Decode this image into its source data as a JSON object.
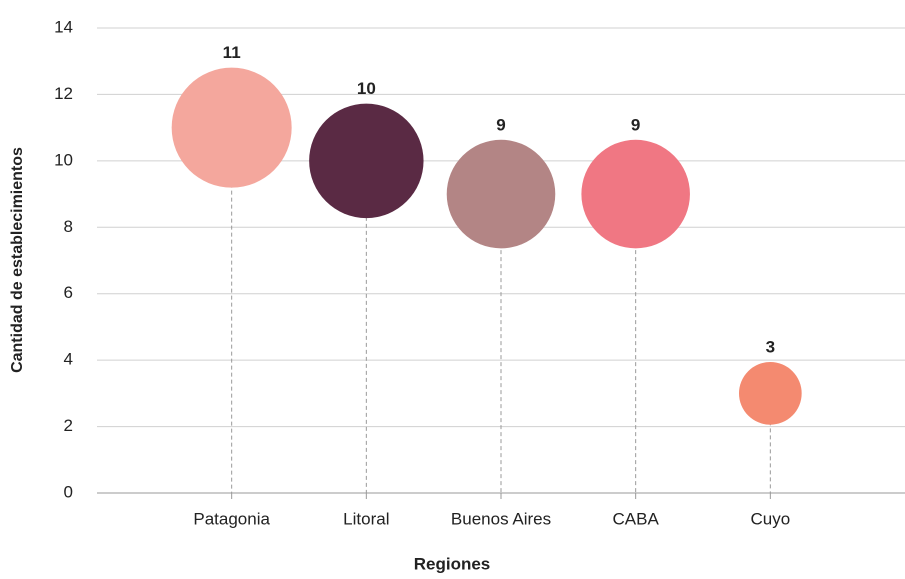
{
  "chart_data": {
    "type": "bubble",
    "x_label": "Regiones",
    "y_label": "Cantidad de establecimientos",
    "categories": [
      "Patagonia",
      "Litoral",
      "Buenos Aires",
      "CABA",
      "Cuyo"
    ],
    "values": [
      11,
      10,
      9,
      9,
      3
    ],
    "colors": [
      "#f4a79d",
      "#5a2a44",
      "#b38585",
      "#f07783",
      "#f48a70"
    ],
    "ylim": [
      0,
      14
    ],
    "yticks": [
      0,
      2,
      4,
      6,
      8,
      10,
      12,
      14
    ],
    "grid": true
  }
}
